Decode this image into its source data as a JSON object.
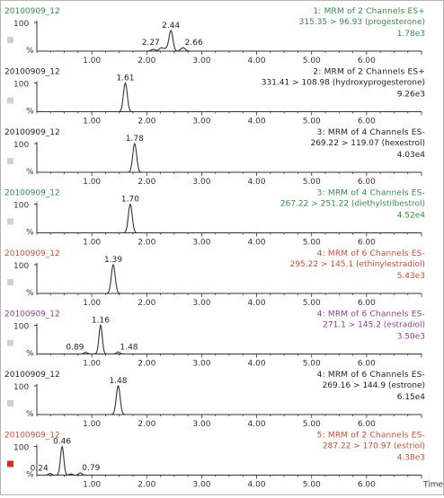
{
  "colors": {
    "green": "#3a8a4a",
    "black": "#222222",
    "purple": "#8a3f8a",
    "red": "#c0503a",
    "axis": "#333333",
    "marker_grey": "#c8d8c8",
    "marker_red": "#d03020"
  },
  "chart_data": [
    {
      "type": "line",
      "sample": "20100909_12",
      "title_line1": "1: MRM of 2 Channels ES+",
      "title_line2": "315.35 > 96.93 (progesterone)",
      "intensity": "1.78e3",
      "color": "green",
      "marker": "grey",
      "y_max_label": "100",
      "y_unit": "%",
      "xlim": [
        0,
        7
      ],
      "x_ticks": [
        "1.00",
        "2.00",
        "3.00",
        "4.00",
        "5.00",
        "6.00"
      ],
      "peaks": [
        {
          "rt": 2.27,
          "height": 12,
          "width": 0.04,
          "label": "2.27"
        },
        {
          "rt": 2.44,
          "height": 72,
          "width": 0.035,
          "label": "2.44"
        },
        {
          "rt": 2.66,
          "height": 12,
          "width": 0.04,
          "label": "2.66"
        },
        {
          "rt": 2.12,
          "height": 6,
          "width": 0.04,
          "label": ""
        },
        {
          "rt": 2.36,
          "height": 8,
          "width": 0.03,
          "label": ""
        }
      ]
    },
    {
      "type": "line",
      "sample": "20100909_12",
      "title_line1": "2: MRM of 2 Channels ES+",
      "title_line2": "331.41 > 108.98 (hydroxyprogesterone)",
      "intensity": "9.26e3",
      "color": "black",
      "marker": "grey",
      "y_max_label": "100",
      "y_unit": "%",
      "xlim": [
        0,
        7
      ],
      "x_ticks": [
        "1.00",
        "2.00",
        "3.00",
        "4.00",
        "5.00",
        "6.00"
      ],
      "peaks": [
        {
          "rt": 1.61,
          "height": 100,
          "width": 0.035,
          "label": "1.61"
        }
      ]
    },
    {
      "type": "line",
      "sample": "20100909_12",
      "title_line1": "3: MRM of 4 Channels ES-",
      "title_line2": "269.22 > 119.07 (hexestrol)",
      "intensity": "4.03e4",
      "color": "black",
      "marker": "grey",
      "y_max_label": "100",
      "y_unit": "%",
      "xlim": [
        0,
        7
      ],
      "x_ticks": [
        "1.00",
        "2.00",
        "3.00",
        "4.00",
        "5.00",
        "6.00"
      ],
      "peaks": [
        {
          "rt": 1.78,
          "height": 100,
          "width": 0.035,
          "label": "1.78"
        }
      ]
    },
    {
      "type": "line",
      "sample": "20100909_12",
      "title_line1": "3: MRM of 4 Channels ES-",
      "title_line2": "267.22 > 251.22 (diethylstilbestrol)",
      "intensity": "4.52e4",
      "color": "green",
      "marker": "grey",
      "y_max_label": "100",
      "y_unit": "%",
      "xlim": [
        0,
        7
      ],
      "x_ticks": [
        "1.00",
        "2.00",
        "3.00",
        "4.00",
        "5.00",
        "6.00"
      ],
      "peaks": [
        {
          "rt": 1.7,
          "height": 100,
          "width": 0.035,
          "label": "1.70"
        }
      ]
    },
    {
      "type": "line",
      "sample": "20100909_12",
      "title_line1": "4: MRM of 6 Channels ES-",
      "title_line2": "295.22 > 145.1 (ethinylestradiol)",
      "intensity": "5.43e3",
      "color": "red",
      "marker": "grey",
      "y_max_label": "100",
      "y_unit": "%",
      "xlim": [
        0,
        7
      ],
      "x_ticks": [
        "1.00",
        "2.00",
        "3.00",
        "4.00",
        "5.00",
        "6.00"
      ],
      "peaks": [
        {
          "rt": 1.39,
          "height": 100,
          "width": 0.035,
          "label": "1.39"
        }
      ]
    },
    {
      "type": "line",
      "sample": "20100909_12",
      "title_line1": "4: MRM of 6 Channels ES-",
      "title_line2": "271.1 > 145.2 (estradiol)",
      "intensity": "3.50e3",
      "color": "purple",
      "marker": "grey",
      "y_max_label": "100",
      "y_unit": "%",
      "xlim": [
        0,
        7
      ],
      "x_ticks": [
        "1.00",
        "2.00",
        "3.00",
        "4.00",
        "5.00",
        "6.00"
      ],
      "peaks": [
        {
          "rt": 1.16,
          "height": 100,
          "width": 0.03,
          "label": "1.16"
        },
        {
          "rt": 0.89,
          "height": 6,
          "width": 0.03,
          "label": "0.89"
        },
        {
          "rt": 1.48,
          "height": 7,
          "width": 0.03,
          "label": "1.48"
        }
      ]
    },
    {
      "type": "line",
      "sample": "20100909_12",
      "title_line1": "4: MRM of 6 Channels ES-",
      "title_line2": "269.16 > 144.9 (estrone)",
      "intensity": "6.15e4",
      "color": "black",
      "marker": "grey",
      "y_max_label": "100",
      "y_unit": "%",
      "xlim": [
        0,
        7
      ],
      "x_ticks": [
        "1.00",
        "2.00",
        "3.00",
        "4.00",
        "5.00",
        "6.00"
      ],
      "peaks": [
        {
          "rt": 1.48,
          "height": 100,
          "width": 0.035,
          "label": "1.48"
        }
      ]
    },
    {
      "type": "line",
      "sample": "20100909_12",
      "title_line1": "5: MRM of 2 Channels ES-",
      "title_line2": "287.22 > 170.97 (estriol)",
      "intensity": "4.38e3",
      "color": "red",
      "marker": "red",
      "y_max_label": "100",
      "y_unit": "%",
      "xlim": [
        0,
        7
      ],
      "x_ticks": [
        "1.00",
        "2.00",
        "3.00",
        "4.00",
        "5.00",
        "6.00"
      ],
      "x_title": "Time",
      "peaks": [
        {
          "rt": 0.46,
          "height": 100,
          "width": 0.03,
          "label": "0.46"
        },
        {
          "rt": 0.24,
          "height": 6,
          "width": 0.03,
          "label": "0.24"
        },
        {
          "rt": 0.79,
          "height": 8,
          "width": 0.03,
          "label": "0.79"
        },
        {
          "rt": 0.62,
          "height": 4,
          "width": 0.03,
          "label": ""
        }
      ]
    }
  ]
}
